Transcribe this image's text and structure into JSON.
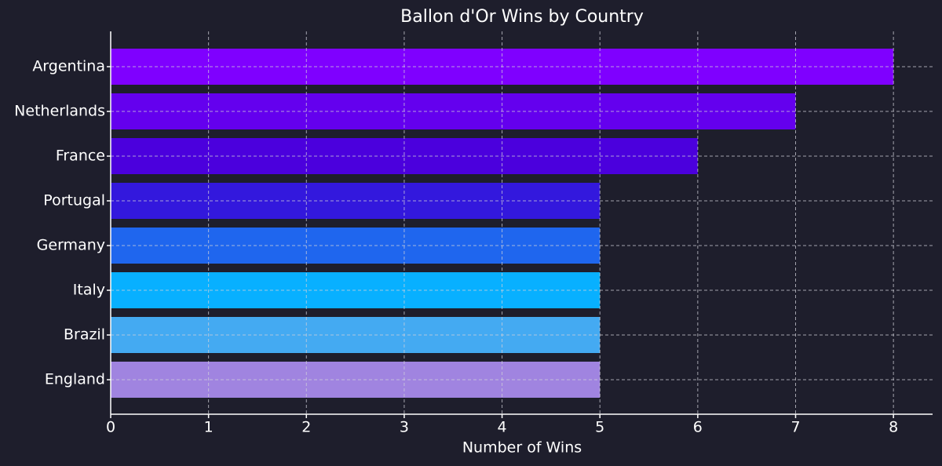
{
  "chart_data": {
    "type": "barh",
    "title": "Ballon d'Or Wins by Country",
    "xlabel": "Number of Wins",
    "categories": [
      "Argentina",
      "Netherlands",
      "France",
      "Portugal",
      "Germany",
      "Italy",
      "Brazil",
      "England"
    ],
    "values": [
      8,
      7,
      6,
      5,
      5,
      5,
      5,
      5
    ],
    "colors": [
      "#7f00ff",
      "#6400ee",
      "#4b00dd",
      "#3318dd",
      "#1f66ee",
      "#08b0ff",
      "#44aaf2",
      "#a084e0"
    ],
    "xlim": [
      0,
      8.4
    ],
    "xticks": [
      0,
      1,
      2,
      3,
      4,
      5,
      6,
      7,
      8
    ],
    "grid": true
  }
}
